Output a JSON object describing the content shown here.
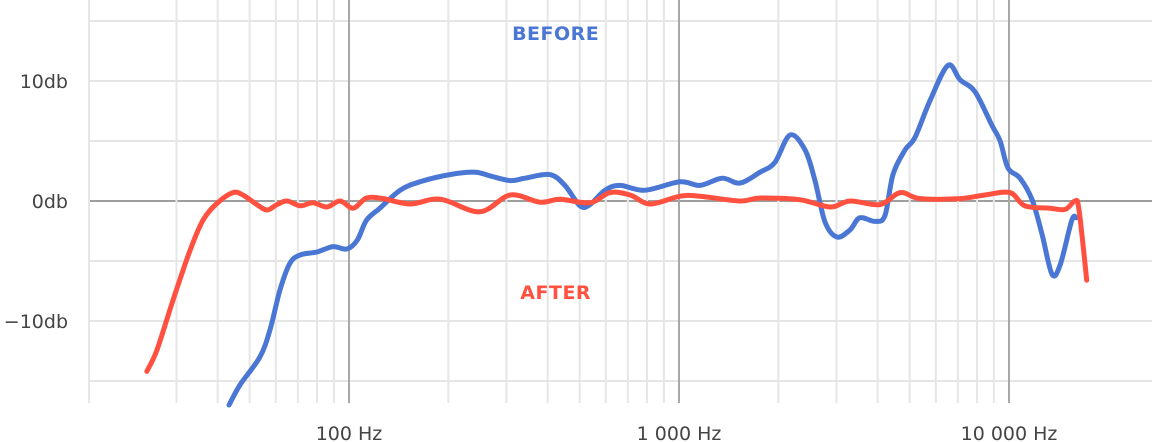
{
  "chart_data": {
    "type": "line",
    "title": "",
    "xlabel": "",
    "ylabel": "",
    "x_scale": "log",
    "xlim": [
      20,
      27000
    ],
    "ylim": [
      -17,
      16.8
    ],
    "grid": true,
    "x_ticks": [
      {
        "value": 100,
        "label": "100 Hz"
      },
      {
        "value": 1000,
        "label": "1 000 Hz"
      },
      {
        "value": 10000,
        "label": "10 000 Hz"
      }
    ],
    "y_ticks": [
      {
        "value": 10,
        "label": "10db"
      },
      {
        "value": 0,
        "label": "0db"
      },
      {
        "value": -10,
        "label": "−10db"
      }
    ],
    "series": [
      {
        "name": "BEFORE",
        "color": "#4a76d4",
        "label_position": [
          400,
          14
        ],
        "points": [
          [
            43.3,
            -17
          ],
          [
            46.8,
            -15.3
          ],
          [
            53.7,
            -13
          ],
          [
            57.6,
            -10.75
          ],
          [
            61.8,
            -7.4
          ],
          [
            66.2,
            -5.2
          ],
          [
            71.1,
            -4.5
          ],
          [
            80,
            -4.25
          ],
          [
            89.5,
            -3.8
          ],
          [
            98.6,
            -4
          ],
          [
            106,
            -3.25
          ],
          [
            113,
            -1.6
          ],
          [
            124,
            -0.6
          ],
          [
            143,
            0.9
          ],
          [
            164,
            1.6
          ],
          [
            202,
            2.2
          ],
          [
            241,
            2.4
          ],
          [
            267,
            2.1
          ],
          [
            308,
            1.7
          ],
          [
            341,
            1.9
          ],
          [
            406,
            2.2
          ],
          [
            451,
            1.3
          ],
          [
            501,
            -0.4
          ],
          [
            537,
            -0.3
          ],
          [
            597,
            0.9
          ],
          [
            662,
            1.3
          ],
          [
            789,
            0.9
          ],
          [
            1007,
            1.6
          ],
          [
            1158,
            1.3
          ],
          [
            1350,
            1.9
          ],
          [
            1530,
            1.5
          ],
          [
            1760,
            2.4
          ],
          [
            1950,
            3.2
          ],
          [
            2170,
            5.5
          ],
          [
            2410,
            4.25
          ],
          [
            2580,
            1.75
          ],
          [
            2770,
            -1.75
          ],
          [
            3010,
            -3
          ],
          [
            3300,
            -2.4
          ],
          [
            3530,
            -1.4
          ],
          [
            3930,
            -1.7
          ],
          [
            4210,
            -1.2
          ],
          [
            4450,
            2.2
          ],
          [
            4840,
            4.25
          ],
          [
            5190,
            5.3
          ],
          [
            5770,
            8.4
          ],
          [
            6530,
            11.3
          ],
          [
            7110,
            10.1
          ],
          [
            7890,
            9.1
          ],
          [
            8880,
            6.3
          ],
          [
            9400,
            5
          ],
          [
            9930,
            2.75
          ],
          [
            10800,
            1.9
          ],
          [
            11750,
            0.1
          ],
          [
            12600,
            -2.8
          ],
          [
            13500,
            -6.1
          ],
          [
            14300,
            -5.3
          ],
          [
            15500,
            -1.6
          ],
          [
            16000,
            -1.4
          ]
        ]
      },
      {
        "name": "AFTER",
        "color": "#ff5040",
        "label_position": [
          400,
          -7.6
        ],
        "points": [
          [
            24.4,
            -14.2
          ],
          [
            26.2,
            -12.4
          ],
          [
            29.3,
            -8.25
          ],
          [
            33,
            -4.1
          ],
          [
            36.1,
            -1.6
          ],
          [
            39.8,
            -0.2
          ],
          [
            44.5,
            0.7
          ],
          [
            47.7,
            0.5
          ],
          [
            52.6,
            -0.3
          ],
          [
            56.5,
            -0.75
          ],
          [
            60.5,
            -0.3
          ],
          [
            64.9,
            0
          ],
          [
            71.1,
            -0.4
          ],
          [
            77.8,
            -0.15
          ],
          [
            85.7,
            -0.5
          ],
          [
            93.9,
            0
          ],
          [
            103,
            -0.6
          ],
          [
            113,
            0.25
          ],
          [
            127,
            0.2
          ],
          [
            153,
            -0.25
          ],
          [
            189,
            0.15
          ],
          [
            249,
            -0.9
          ],
          [
            308,
            0.5
          ],
          [
            379,
            -0.1
          ],
          [
            436,
            0.15
          ],
          [
            537,
            -0.15
          ],
          [
            618,
            0.7
          ],
          [
            711,
            0.5
          ],
          [
            817,
            -0.25
          ],
          [
            1007,
            0.4
          ],
          [
            1158,
            0.4
          ],
          [
            1530,
            0
          ],
          [
            1760,
            0.25
          ],
          [
            2330,
            0.1
          ],
          [
            2870,
            -0.5
          ],
          [
            3300,
            0
          ],
          [
            4060,
            -0.3
          ],
          [
            4680,
            0.7
          ],
          [
            5370,
            0.2
          ],
          [
            7110,
            0.2
          ],
          [
            8450,
            0.5
          ],
          [
            10070,
            0.7
          ],
          [
            11170,
            -0.4
          ],
          [
            13300,
            -0.6
          ],
          [
            14800,
            -0.7
          ],
          [
            15850,
            0
          ],
          [
            16300,
            -0.75
          ],
          [
            17200,
            -6.6
          ]
        ]
      }
    ]
  }
}
